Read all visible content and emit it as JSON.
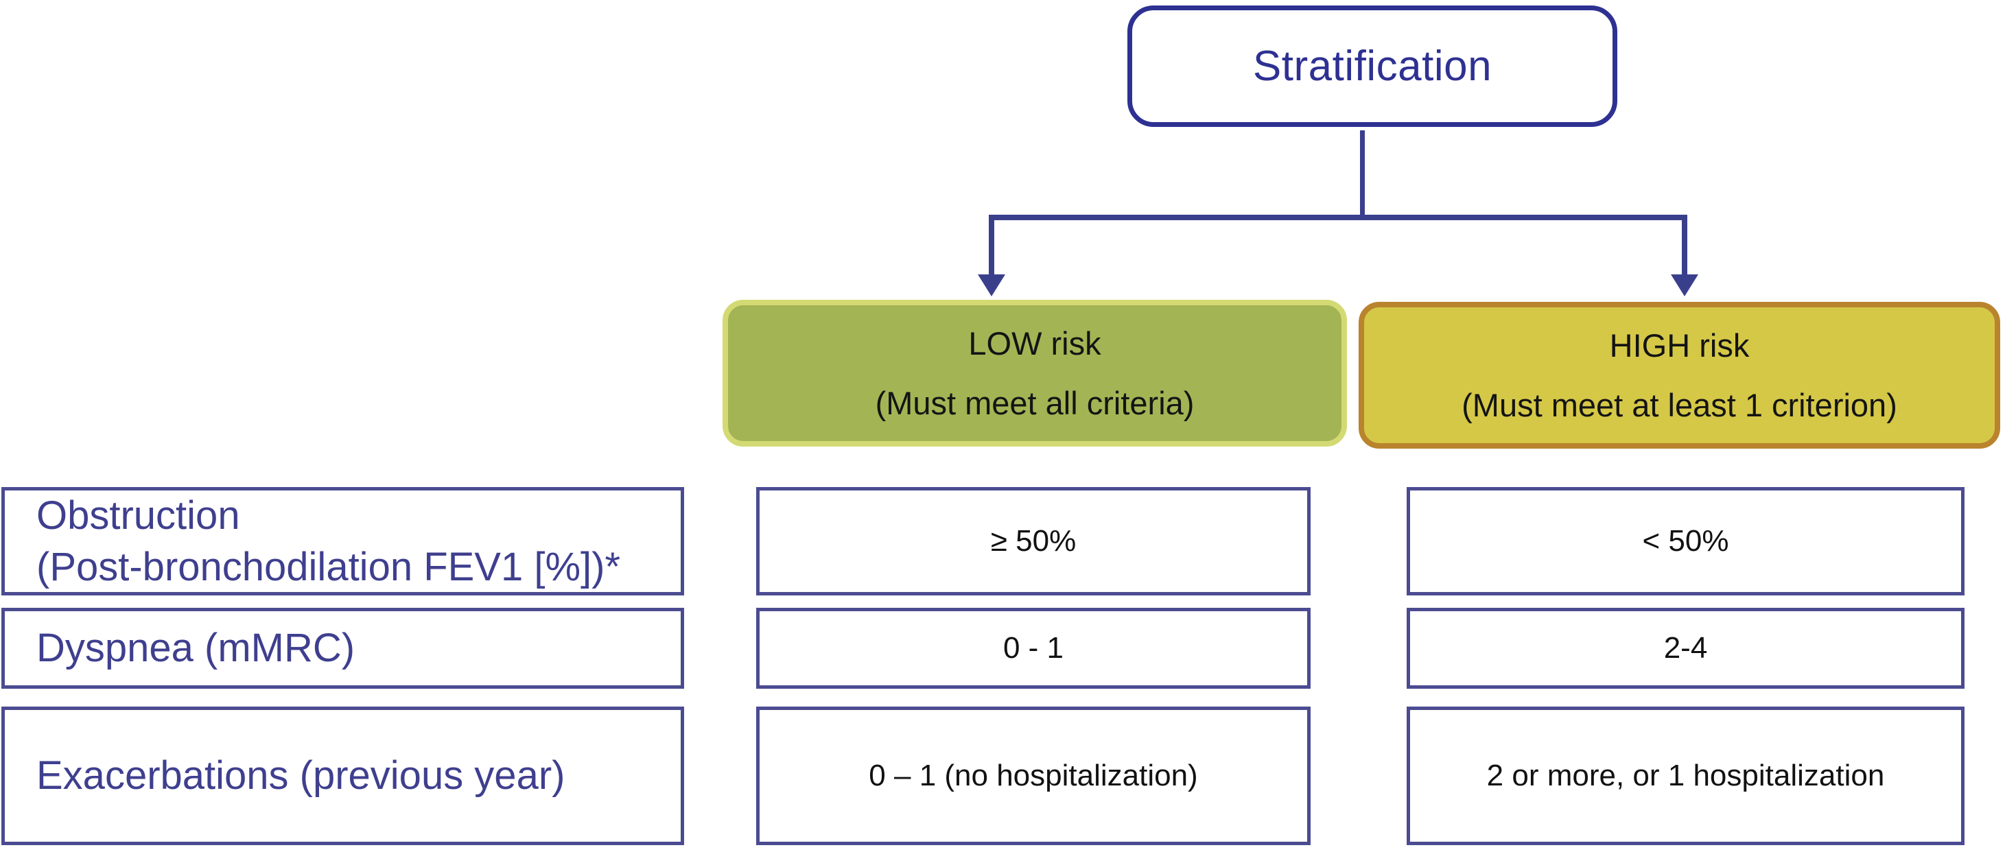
{
  "flowchart": {
    "root_label": "Stratification",
    "branches": [
      {
        "id": "low",
        "title": "LOW risk",
        "subtitle": "(Must meet all criteria)"
      },
      {
        "id": "high",
        "title": "HIGH risk",
        "subtitle": "(Must meet at least 1 criterion)"
      }
    ],
    "rows": [
      {
        "label_line1": "Obstruction",
        "label_line2": "(Post-bronchodilation FEV1 [%])*",
        "low_value": "≥ 50%",
        "high_value": "< 50%"
      },
      {
        "label_line1": "Dyspnea (mMRC)",
        "low_value": "0 - 1",
        "high_value": "2-4"
      },
      {
        "label_line1": "Exacerbations (previous year)",
        "low_value": "0 – 1 (no hospitalization)",
        "high_value": "2 or more, or 1 hospitalization"
      }
    ],
    "colors": {
      "indigo_border": "#2E3192",
      "connector": "#3A3F8C",
      "table_border": "#4B4B92",
      "label_text": "#3F3F8F",
      "low_fill": "#A3B454",
      "low_border": "#D3DA74",
      "high_fill": "#D5C847",
      "high_border": "#B9842D"
    }
  }
}
